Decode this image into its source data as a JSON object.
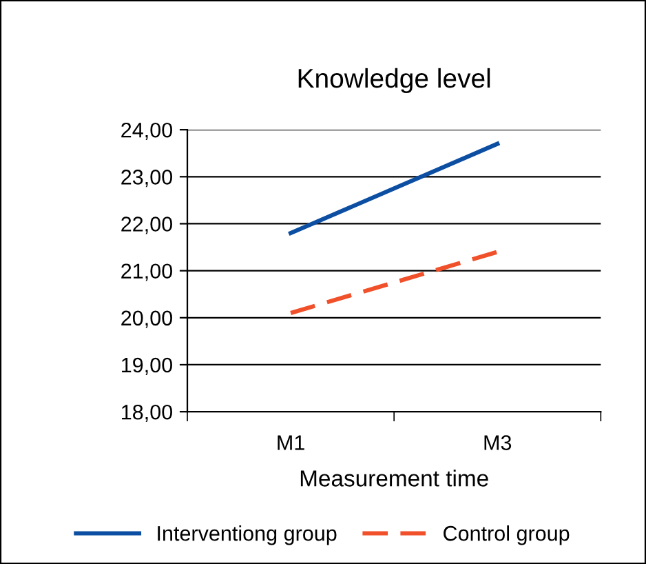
{
  "chart_data": {
    "type": "line",
    "title": "Knowledge level",
    "xlabel": "Measurement time",
    "categories": [
      "M1",
      "M3"
    ],
    "series": [
      {
        "name": "Interventiong group",
        "color": "#0b4ea2",
        "values": [
          21.8,
          23.7
        ],
        "line_style": "solid"
      },
      {
        "name": "Control group",
        "color": "#f0502a",
        "values": [
          20.1,
          21.4
        ],
        "line_style": "dashed"
      }
    ],
    "ylim": [
      18,
      24
    ],
    "yticks": [
      {
        "value": 18,
        "label": "18,00"
      },
      {
        "value": 19,
        "label": "19,00"
      },
      {
        "value": 20,
        "label": "20,00"
      },
      {
        "value": 21,
        "label": "21,00"
      },
      {
        "value": 22,
        "label": "22,00"
      },
      {
        "value": 23,
        "label": "23,00"
      },
      {
        "value": 24,
        "label": "24,00"
      }
    ],
    "grid": "y",
    "legend": "bottom",
    "marker": "none"
  }
}
